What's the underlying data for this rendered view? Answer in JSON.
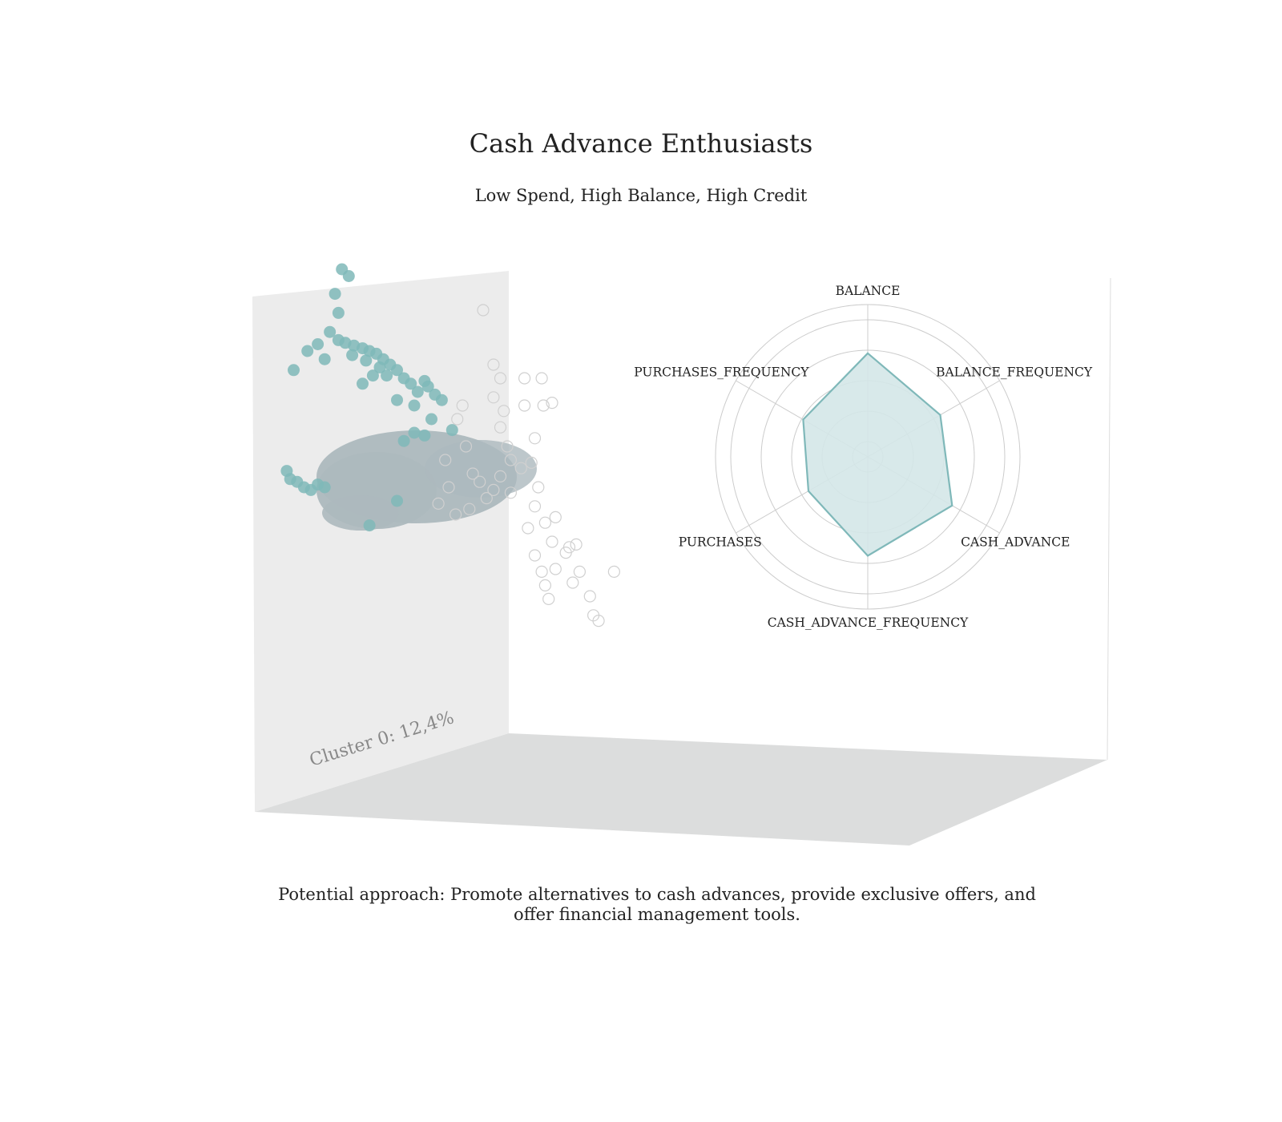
{
  "figure": {
    "title": "Cash Advance Enthusiasts",
    "subtitle": "Low Spend, High Balance, High Credit",
    "approach_text": "Potential approach: Promote alternatives to cash advances, provide exclusive offers, and offer financial management tools.",
    "cluster_label": "Cluster 0: 12,4%"
  },
  "colors": {
    "highlight": "#7fb8b9",
    "others": "#adb9be",
    "outline": "#d0d0d0",
    "left_pane": "#ececec",
    "floor_pane": "#dcdddd",
    "radar_fill": "#d4e7e8",
    "radar_line": "#7fb8b9",
    "grid": "#cccccc"
  },
  "chart_data": [
    {
      "type": "scatter",
      "projection": "3d",
      "grid": false,
      "axes_visible": false,
      "series": [
        {
          "name": "Cluster 0: 12,4%",
          "color": "#7fb8b9",
          "points": [
            [
              -0.62,
              1.7
            ],
            [
              -0.58,
              1.65
            ],
            [
              -0.66,
              1.52
            ],
            [
              -0.64,
              1.38
            ],
            [
              -0.69,
              1.24
            ],
            [
              -0.76,
              1.15
            ],
            [
              -0.82,
              1.1
            ],
            [
              -0.6,
              1.16
            ],
            [
              -0.55,
              1.14
            ],
            [
              -0.5,
              1.12
            ],
            [
              -0.46,
              1.1
            ],
            [
              -0.42,
              1.08
            ],
            [
              -0.38,
              1.04
            ],
            [
              -0.34,
              1.0
            ],
            [
              -0.3,
              0.96
            ],
            [
              -0.64,
              1.18
            ],
            [
              -0.56,
              1.07
            ],
            [
              -0.48,
              1.03
            ],
            [
              -0.4,
              0.98
            ],
            [
              -0.36,
              0.92
            ],
            [
              -0.26,
              0.9
            ],
            [
              -0.22,
              0.86
            ],
            [
              -0.18,
              0.8
            ],
            [
              -0.14,
              0.88
            ],
            [
              -0.12,
              0.84
            ],
            [
              -0.2,
              0.7
            ],
            [
              -0.08,
              0.78
            ],
            [
              -0.04,
              0.74
            ],
            [
              -0.3,
              0.74
            ],
            [
              -0.72,
              1.04
            ],
            [
              -0.9,
              0.96
            ],
            [
              -0.44,
              0.92
            ],
            [
              -0.5,
              0.86
            ],
            [
              -0.1,
              0.6
            ],
            [
              0.02,
              0.52
            ],
            [
              -0.2,
              0.5
            ],
            [
              -0.14,
              0.48
            ],
            [
              -0.26,
              0.44
            ],
            [
              -0.94,
              0.22
            ],
            [
              -0.92,
              0.16
            ],
            [
              -0.88,
              0.14
            ],
            [
              -0.84,
              0.1
            ],
            [
              -0.8,
              0.08
            ],
            [
              -0.76,
              0.12
            ],
            [
              -0.72,
              0.1
            ],
            [
              -0.3,
              0.0
            ],
            [
              -0.46,
              -0.18
            ]
          ]
        },
        {
          "name": "",
          "color": "#adb9be",
          "points": []
        },
        {
          "name": "",
          "color": "#d0d0d0",
          "style": "outline",
          "points": [
            [
              0.2,
              1.4
            ],
            [
              0.26,
              1.0
            ],
            [
              0.3,
              0.9
            ],
            [
              0.26,
              0.76
            ],
            [
              0.32,
              0.66
            ],
            [
              0.3,
              0.54
            ],
            [
              0.34,
              0.4
            ],
            [
              0.36,
              0.3
            ],
            [
              0.42,
              0.24
            ],
            [
              0.3,
              0.18
            ],
            [
              0.36,
              0.06
            ],
            [
              0.26,
              0.08
            ],
            [
              0.18,
              0.14
            ],
            [
              0.22,
              0.02
            ],
            [
              0.44,
              0.9
            ],
            [
              0.54,
              0.9
            ],
            [
              0.6,
              0.72
            ],
            [
              0.55,
              0.7
            ],
            [
              0.44,
              0.7
            ],
            [
              0.5,
              0.46
            ],
            [
              0.48,
              0.28
            ],
            [
              0.52,
              0.1
            ],
            [
              0.5,
              -0.04
            ],
            [
              0.56,
              -0.16
            ],
            [
              0.62,
              -0.12
            ],
            [
              0.6,
              -0.3
            ],
            [
              0.68,
              -0.38
            ],
            [
              0.7,
              -0.34
            ],
            [
              0.74,
              -0.32
            ],
            [
              0.46,
              -0.2
            ],
            [
              0.5,
              -0.4
            ],
            [
              0.54,
              -0.52
            ],
            [
              0.62,
              -0.5
            ],
            [
              0.72,
              -0.6
            ],
            [
              0.56,
              -0.62
            ],
            [
              0.58,
              -0.72
            ],
            [
              0.76,
              -0.52
            ],
            [
              0.96,
              -0.52
            ],
            [
              0.82,
              -0.7
            ],
            [
              0.84,
              -0.84
            ],
            [
              0.87,
              -0.88
            ],
            [
              0.05,
              0.6
            ],
            [
              0.1,
              0.4
            ],
            [
              0.14,
              0.2
            ],
            [
              0.12,
              -0.06
            ],
            [
              -0.02,
              0.3
            ],
            [
              0.0,
              0.1
            ],
            [
              0.04,
              -0.1
            ],
            [
              -0.06,
              -0.02
            ],
            [
              0.08,
              0.7
            ]
          ]
        }
      ]
    },
    {
      "type": "radar",
      "axes": [
        "BALANCE",
        "BALANCE_FREQUENCY",
        "CASH_ADVANCE",
        "CASH_ADVANCE_FREQUENCY",
        "PURCHASES",
        "PURCHASES_FREQUENCY"
      ],
      "values": [
        0.68,
        0.55,
        0.64,
        0.65,
        0.45,
        0.49
      ],
      "rmax": 1.0,
      "rings": [
        0.1,
        0.3,
        0.5,
        0.7,
        0.9,
        1.0
      ],
      "grid": true
    }
  ]
}
